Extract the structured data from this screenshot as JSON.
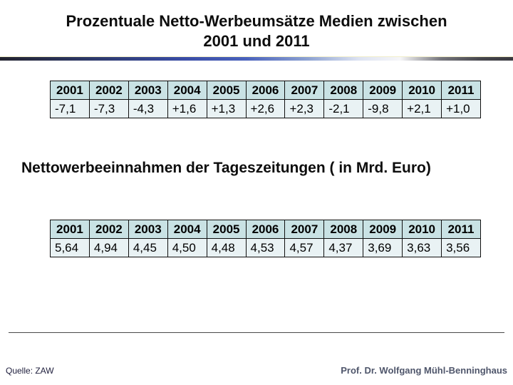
{
  "slide": {
    "title_line1": "Prozentuale Netto-Werbeumsätze Medien zwischen",
    "title_line2": "2001 und 2011",
    "subtitle": "Nettowerbeeinnahmen der Tageszeitungen ( in Mrd. Euro)",
    "footer_left": "Quelle: ZAW",
    "footer_right": "Prof. Dr. Wolfgang Mühl-Benninghaus"
  },
  "chart_data": [
    {
      "type": "table",
      "title": "Prozentuale Netto-Werbeumsätze Medien zwischen 2001 und 2011",
      "columns": [
        "2001",
        "2002",
        "2003",
        "2004",
        "2005",
        "2006",
        "2007",
        "2008",
        "2009",
        "2010",
        "2011"
      ],
      "rows": [
        [
          "-7,1",
          "-7,3",
          "-4,3",
          "+1,6",
          "+1,3",
          "+2,6",
          "+2,3",
          "-2,1",
          "-9,8",
          "+2,1",
          "+1,0"
        ]
      ]
    },
    {
      "type": "table",
      "title": "Nettowerbeeinnahmen der Tageszeitungen ( in Mrd. Euro)",
      "columns": [
        "2001",
        "2002",
        "2003",
        "2004",
        "2005",
        "2006",
        "2007",
        "2008",
        "2009",
        "2010",
        "2011"
      ],
      "rows": [
        [
          "5,64",
          "4,94",
          "4,45",
          "4,50",
          "4,48",
          "4,53",
          "4,57",
          "4,37",
          "3,69",
          "3,63",
          "3,56"
        ]
      ]
    }
  ],
  "colors": {
    "table_header_bg": "#c9e2e4",
    "table_row_bg": "#e9f2f4",
    "table_border": "#101010",
    "divider_blue": "#4a62bc",
    "footer_right_color": "#4f566b"
  }
}
